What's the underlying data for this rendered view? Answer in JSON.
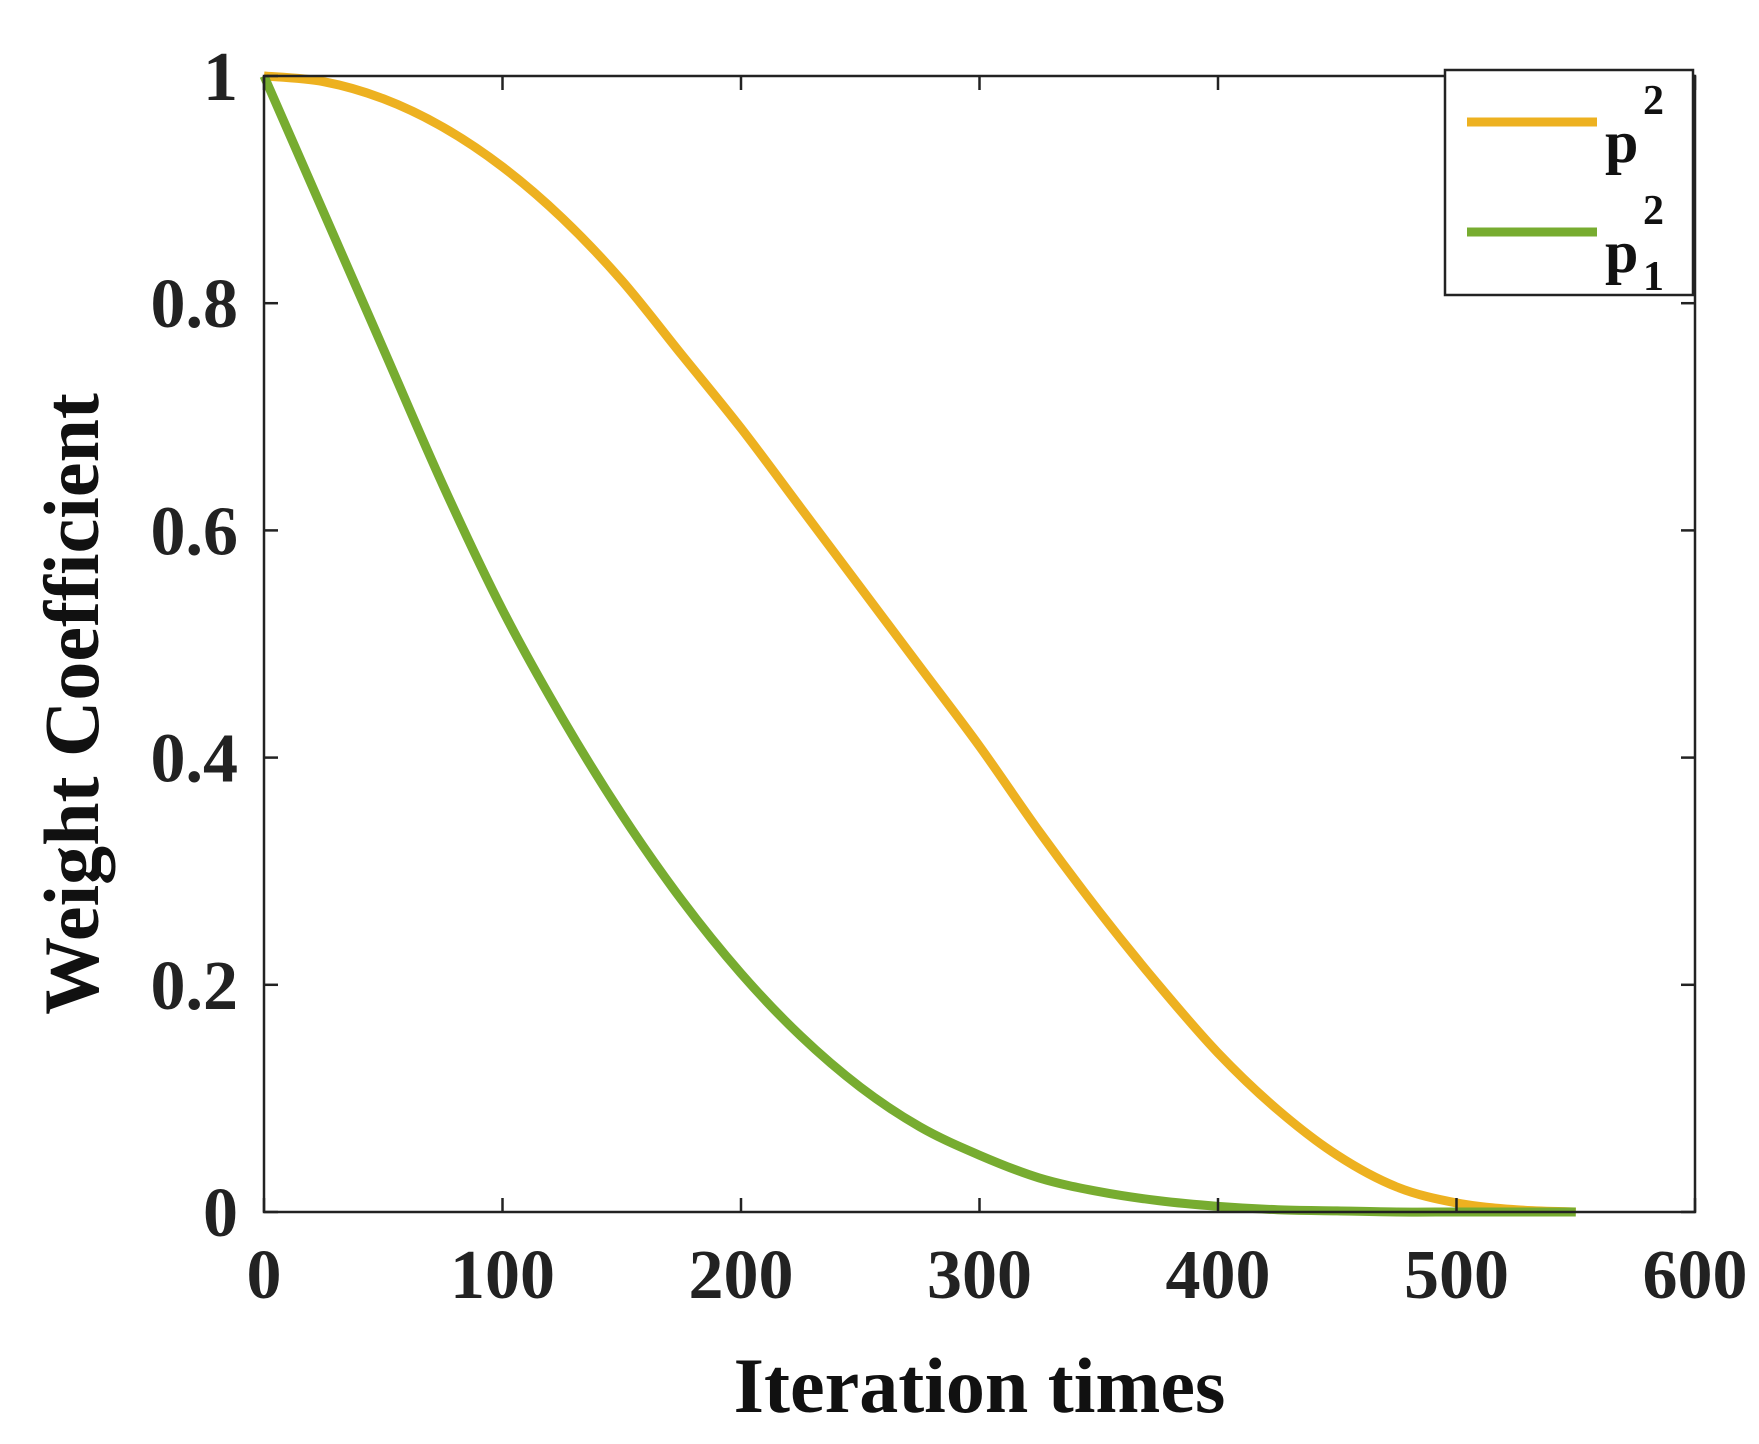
{
  "chart_data": {
    "type": "line",
    "title": "",
    "xlabel": "Iteration times",
    "ylabel": "Weight Coefficient",
    "xlim": [
      0,
      600
    ],
    "ylim": [
      0,
      1
    ],
    "xticks": [
      0,
      100,
      200,
      300,
      400,
      500,
      600
    ],
    "yticks": [
      0,
      0.2,
      0.4,
      0.6,
      0.8,
      1
    ],
    "xtick_labels": [
      "0",
      "100",
      "200",
      "300",
      "400",
      "500",
      "600"
    ],
    "ytick_labels": [
      "0",
      "0.2",
      "0.4",
      "0.6",
      "0.8",
      "1"
    ],
    "grid": false,
    "legend_position": "top-right",
    "x": [
      0,
      25,
      50,
      75,
      100,
      125,
      150,
      175,
      200,
      225,
      250,
      275,
      300,
      325,
      350,
      375,
      400,
      425,
      450,
      475,
      500,
      525,
      550
    ],
    "series": [
      {
        "name": "p",
        "superscript": "2",
        "subscript": "",
        "color": "#EDB120",
        "values": [
          1.0,
          0.995,
          0.98,
          0.955,
          0.92,
          0.875,
          0.82,
          0.755,
          0.69,
          0.62,
          0.55,
          0.48,
          0.41,
          0.335,
          0.265,
          0.2,
          0.14,
          0.09,
          0.05,
          0.022,
          0.008,
          0.002,
          0.0
        ]
      },
      {
        "name": "p",
        "superscript": "2",
        "subscript": "1",
        "color": "#77AC30",
        "values": [
          1.0,
          0.88,
          0.76,
          0.64,
          0.53,
          0.435,
          0.35,
          0.275,
          0.21,
          0.155,
          0.11,
          0.075,
          0.05,
          0.03,
          0.018,
          0.01,
          0.005,
          0.002,
          0.001,
          0.0,
          0.0,
          0.0,
          0.0
        ]
      }
    ]
  }
}
